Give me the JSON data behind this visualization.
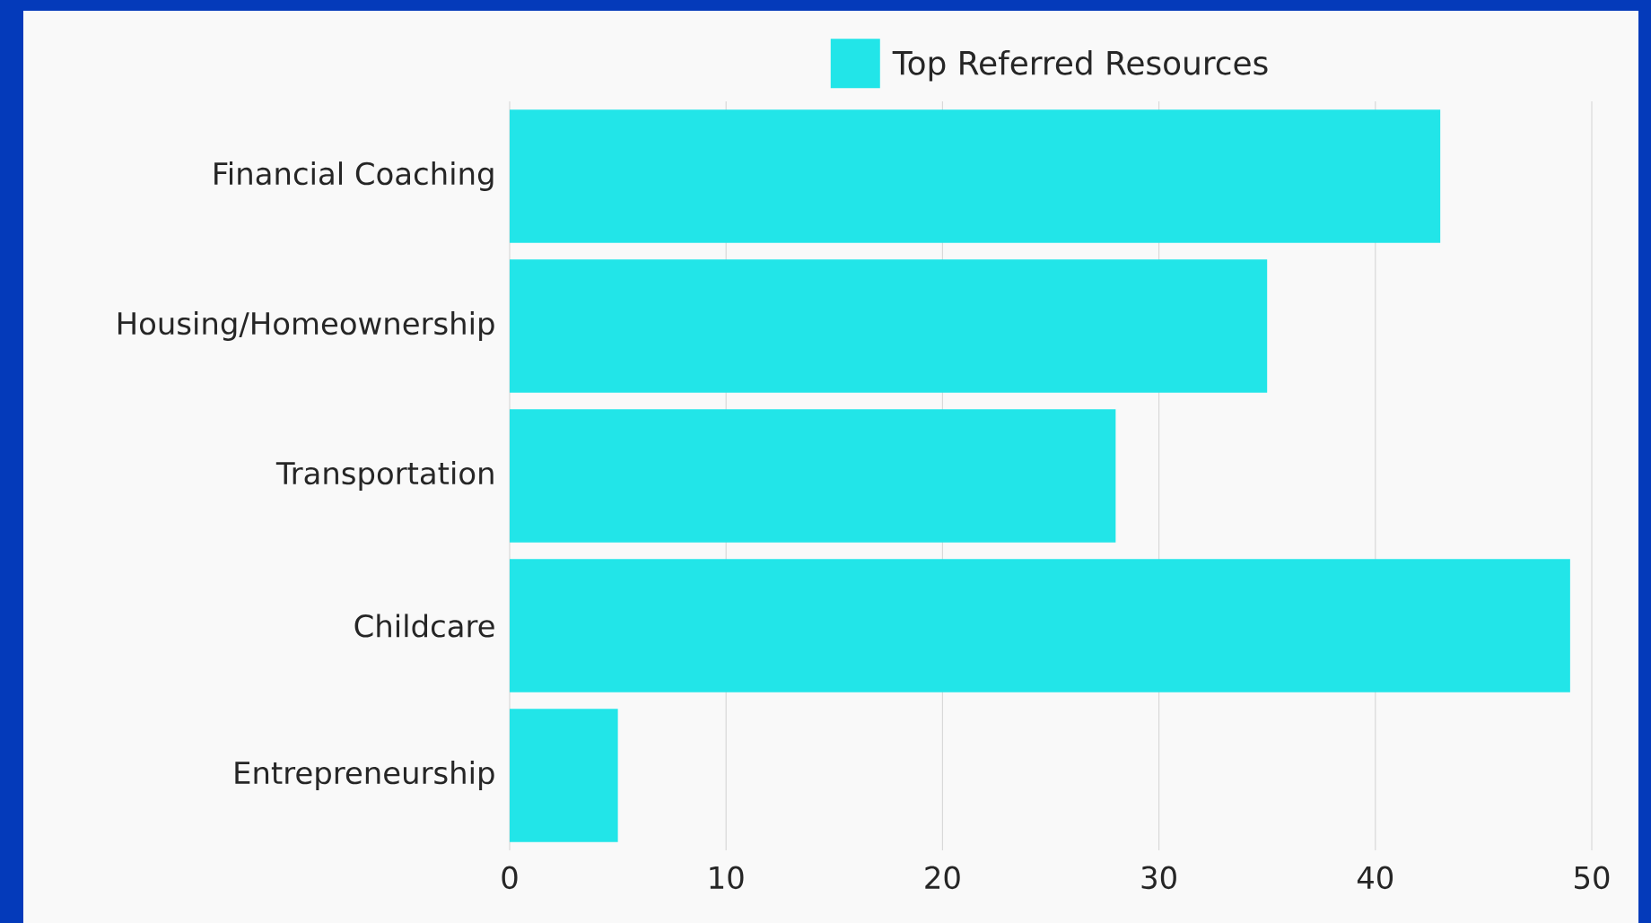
{
  "chart_data": {
    "type": "bar",
    "orientation": "horizontal",
    "categories": [
      "Financial Coaching",
      "Housing/Homeownership",
      "Transportation",
      "Childcare",
      "Entrepreneurship"
    ],
    "series": [
      {
        "name": "Top Referred Resources",
        "color": "#22e5e8",
        "values": [
          43,
          35,
          28,
          49,
          5
        ]
      }
    ],
    "xlim": [
      0,
      50
    ],
    "xticks": [
      0,
      10,
      20,
      30,
      40,
      50
    ],
    "grid": "x",
    "legend": "top"
  }
}
